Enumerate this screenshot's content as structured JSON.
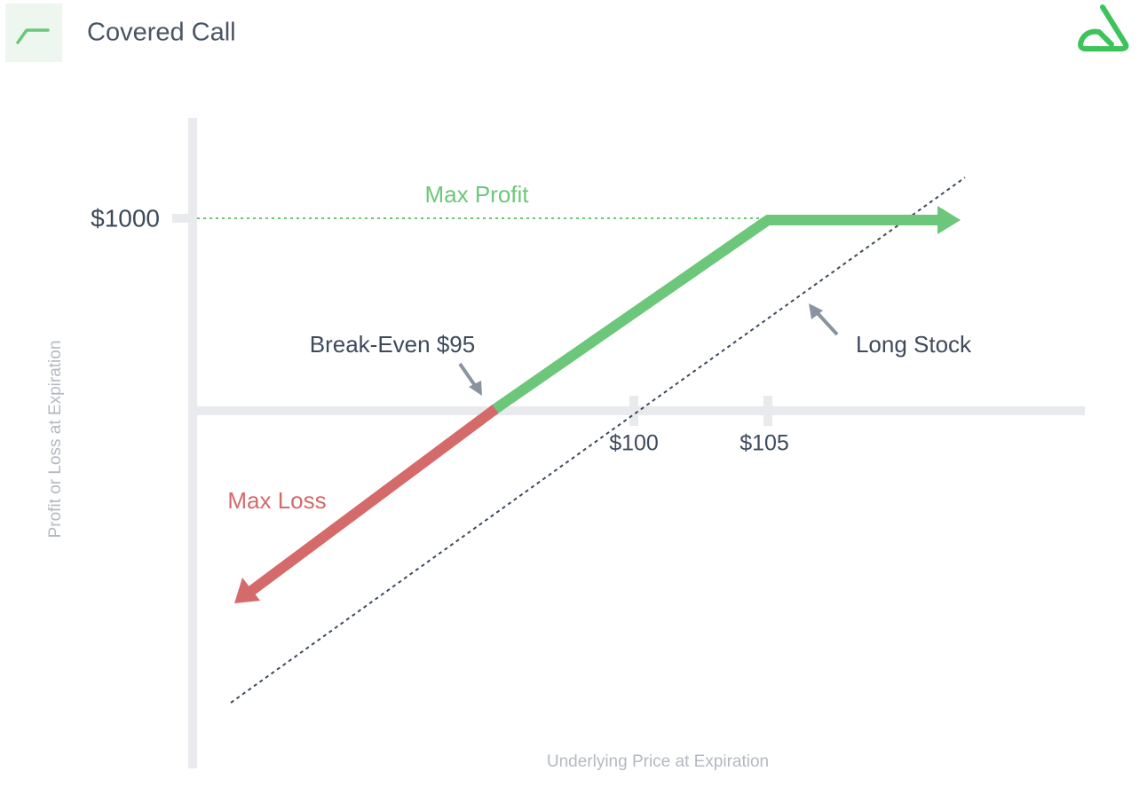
{
  "header": {
    "title": "Covered Call"
  },
  "diagram": {
    "max_profit": "Max Profit",
    "max_loss": "Max Loss",
    "break_even": "Break-Even $95",
    "long_stock": "Long Stock",
    "y_tick": "$1000",
    "x_ticks": [
      "$100",
      "$105"
    ],
    "y_axis_label": "Profit or Loss at Expiration",
    "x_axis_label": "Underlying Price at Expiration"
  }
}
